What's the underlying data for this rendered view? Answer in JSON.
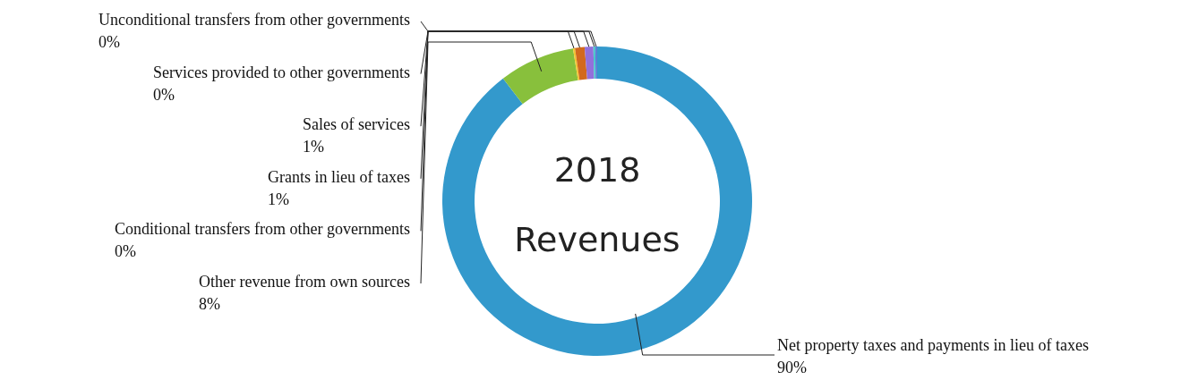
{
  "chart_data": {
    "type": "donut",
    "title": "2018 Revenues",
    "categories": [
      "Net property taxes and payments in lieu of taxes",
      "Other revenue from own sources",
      "Conditional transfers from other governments",
      "Grants in lieu of taxes",
      "Sales of services",
      "Services provided to other governments",
      "Unconditional transfers from other governments"
    ],
    "values": [
      89.6,
      7.9,
      0.2,
      1.0,
      0.9,
      0.2,
      0.2
    ],
    "colors": [
      "#3399cc",
      "#88c03c",
      "#f4c430",
      "#d2691e",
      "#9370db",
      "#48c9c9",
      "#5b7fd6"
    ],
    "value_labels": [
      "90%",
      "8%",
      "0%",
      "1%",
      "1%",
      "0%",
      "0%"
    ]
  }
}
